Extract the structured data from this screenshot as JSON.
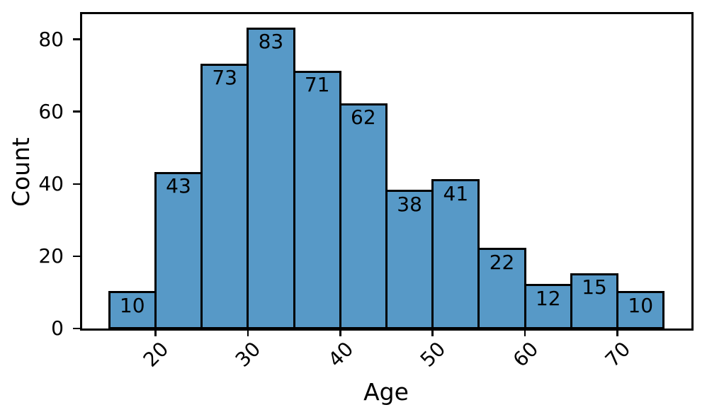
{
  "chart_data": {
    "type": "bar",
    "subtype": "histogram",
    "title": "",
    "xlabel": "Age",
    "ylabel": "Count",
    "bin_edges": [
      15,
      20,
      25,
      30,
      35,
      40,
      45,
      50,
      55,
      60,
      65,
      70,
      75
    ],
    "values": [
      10,
      43,
      73,
      83,
      71,
      62,
      38,
      41,
      22,
      12,
      15,
      10
    ],
    "bar_value_labels": [
      "10",
      "43",
      "73",
      "83",
      "71",
      "62",
      "38",
      "41",
      "22",
      "12",
      "15",
      "10"
    ],
    "xticks": [
      20,
      30,
      40,
      50,
      60,
      70
    ],
    "yticks": [
      0,
      20,
      40,
      60,
      80
    ],
    "xtick_labels": [
      "20",
      "30",
      "40",
      "50",
      "60",
      "70"
    ],
    "ytick_labels": [
      "0",
      "20",
      "40",
      "60",
      "80"
    ],
    "xtick_rotation_deg": 45,
    "xlim": [
      12,
      78
    ],
    "ylim": [
      0,
      87.15
    ],
    "grid": false,
    "legend": null,
    "colors": {
      "bar_fill": "#5799C7",
      "bar_edge": "#000000",
      "axis": "#000000",
      "text": "#000000",
      "background": "#ffffff"
    }
  }
}
